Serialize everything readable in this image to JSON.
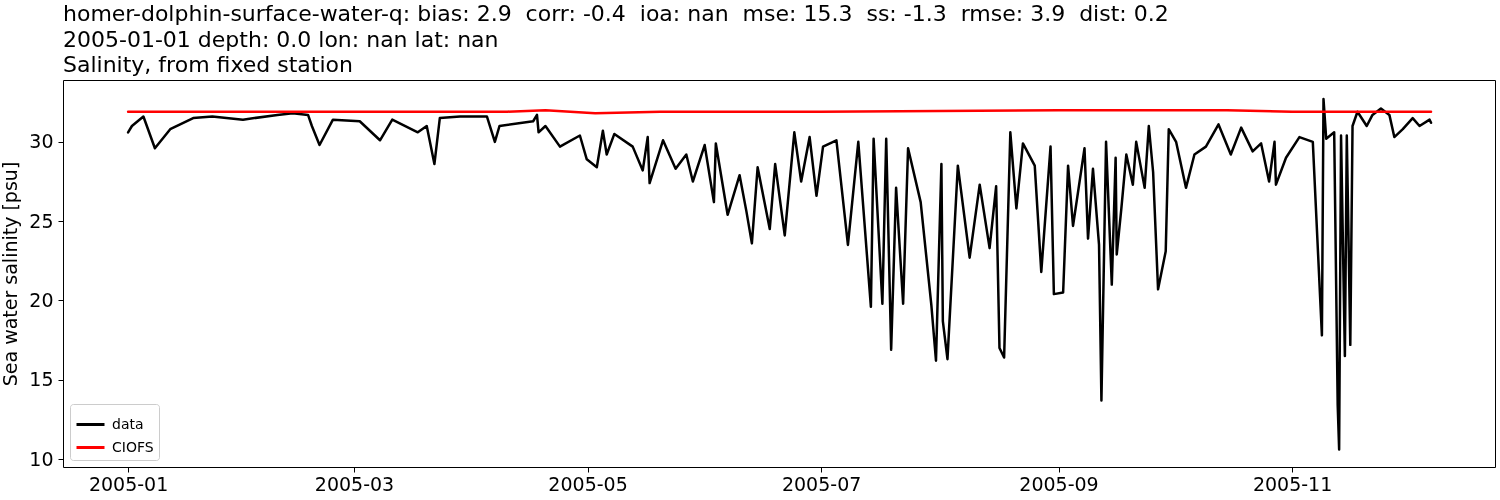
{
  "chart_data": {
    "type": "line",
    "title": "homer-dolphin-surface-water-q: bias: 2.9  corr: -0.4  ioa: nan  mse: 15.3  ss: -1.3  rmse: 3.9  dist: 0.2\n2005-01-01 depth: 0.0 lon: nan lat: nan\nSalinity, from fixed station",
    "ylabel": "Sea water salinity [psu]",
    "xlim": [
      "2004-12-15",
      "2005-12-24"
    ],
    "xticks": [
      "2005-01",
      "2005-03",
      "2005-05",
      "2005-07",
      "2005-09",
      "2005-11"
    ],
    "ylim": [
      9.5,
      33.9
    ],
    "yticks": [
      10,
      15,
      20,
      25,
      30
    ],
    "legend": "bottom left",
    "series": [
      {
        "name": "data",
        "color": "#000000",
        "x": [
          "2005-01-01T00:00",
          "2005-01-02",
          "2005-01-05",
          "2005-01-08",
          "2005-01-12",
          "2005-01-18",
          "2005-01-23",
          "2005-01-31",
          "2005-02-09",
          "2005-02-13",
          "2005-02-17",
          "2005-02-18",
          "2005-02-20",
          "2005-02-23T12:00",
          "2005-03-02T12:00",
          "2005-03-07T19:00",
          "2005-03-11",
          "2005-03-17T16:00",
          "2005-03-20",
          "2005-03-22",
          "2005-03-23T10:00",
          "2005-03-28T17:00",
          "2005-04-04T17:00",
          "2005-04-06T19:00",
          "2005-04-08",
          "2005-04-16T19:00",
          "2005-04-17T19:00",
          "2005-04-18T05:00",
          "2005-04-20",
          "2005-04-23T19:00",
          "2005-04-29",
          "2005-04-30T19:00",
          "2005-05-03T10:00",
          "2005-05-05",
          "2005-05-06",
          "2005-05-08",
          "2005-05-12T19:00",
          "2005-05-15T10:00",
          "2005-05-16T17:00",
          "2005-05-17T05:00",
          "2005-05-20T17:00",
          "2005-05-24",
          "2005-05-26T19:00",
          "2005-05-28T12:00",
          "2005-05-31T14:00",
          "2005-06-03",
          "2005-06-03T12:00",
          "2005-06-06T14:00",
          "2005-06-09T17:00",
          "2005-06-11T12:00",
          "2005-06-12T22:00",
          "2005-06-14T10:00",
          "2005-06-17T14:00",
          "2005-06-19",
          "2005-06-21T12:00",
          "2005-06-24",
          "2005-06-25T19:00",
          "2005-06-28",
          "2005-06-29T19:00",
          "2005-07-01T12:00",
          "2005-07-05",
          "2005-07-08",
          "2005-07-10T17:00",
          "2005-07-14",
          "2005-07-14T17:00",
          "2005-07-17",
          "2005-07-18",
          "2005-07-19T07:00",
          "2005-07-20T14:00",
          "2005-07-22T10:00",
          "2005-07-23T17:00",
          "2005-07-27",
          "2005-07-29T19:00",
          "2005-07-31",
          "2005-08-01T10:00",
          "2005-08-01T19:00",
          "2005-08-03",
          "2005-08-05T17:00",
          "2005-08-08T19:00",
          "2005-08-11T10:00",
          "2005-08-14",
          "2005-08-15T17:00",
          "2005-08-16T14:00",
          "2005-08-17T19:00",
          "2005-08-19T10:00",
          "2005-08-21",
          "2005-08-22T17:00",
          "2005-08-25T19:00",
          "2005-08-27T12:00",
          "2005-08-29T22:00",
          "2005-08-30T19:00",
          "2005-09-02T05:00",
          "2005-09-03T12:00",
          "2005-09-04T19:00",
          "2005-09-07T19:00",
          "2005-09-08T17:00",
          "2005-09-10",
          "2005-09-11T14:00",
          "2005-09-12T05:00",
          "2005-09-13T10:00",
          "2005-09-14T22:00",
          "2005-09-15T22:00",
          "2005-09-16T05:00",
          "2005-09-17T10:00",
          "2005-09-18T17:00",
          "2005-09-20T10:00",
          "2005-09-21T07:00",
          "2005-09-23T12:00",
          "2005-09-24T14:00",
          "2005-09-25T17:00",
          "2005-09-27",
          "2005-09-29",
          "2005-09-29T19:00",
          "2005-10-01T17:00",
          "2005-10-04T07:00",
          "2005-10-06T12:00",
          "2005-10-09T12:00",
          "2005-10-12T19:00",
          "2005-10-16",
          "2005-10-18T17:00",
          "2005-10-21T17:00",
          "2005-10-23T22:00",
          "2005-10-26",
          "2005-10-27T10:00",
          "2005-10-27T19:00",
          "2005-10-30T10:00",
          "2005-11-02T22:00",
          "2005-11-06T10:00",
          "2005-11-08T19:00",
          "2005-11-09T05:00",
          "2005-11-09T22:00",
          "2005-11-12",
          "2005-11-12T22:00",
          "2005-11-13T07:00",
          "2005-11-13T19:00",
          "2005-11-14T19:00",
          "2005-11-15T07:00",
          "2005-11-16T05:00",
          "2005-11-16T19:00",
          "2005-11-18T02:00",
          "2005-11-20T12:00",
          "2005-11-22",
          "2005-11-24T05:00",
          "2005-11-26T10:00",
          "2005-11-27T17:00",
          "2005-11-29T22:00",
          "2005-12-02T12:00",
          "2005-12-04T07:00",
          "2005-12-06T22:00",
          "2005-12-07T07:00"
        ],
        "values": [
          30.6,
          31.0,
          31.6,
          29.6,
          30.8,
          31.5,
          31.6,
          31.4,
          31.7,
          31.8,
          31.7,
          31.0,
          29.8,
          31.4,
          31.3,
          30.1,
          31.4,
          30.6,
          31.0,
          28.6,
          31.5,
          31.6,
          31.6,
          30.0,
          31.0,
          31.3,
          31.7,
          30.6,
          31.0,
          29.7,
          30.4,
          28.9,
          28.4,
          30.7,
          29.2,
          30.5,
          29.7,
          28.2,
          30.3,
          27.4,
          30.1,
          28.3,
          29.2,
          27.5,
          29.8,
          26.2,
          29.9,
          25.4,
          27.9,
          25.6,
          23.6,
          28.4,
          24.5,
          28.6,
          24.1,
          30.6,
          27.5,
          30.3,
          26.6,
          29.7,
          30.1,
          23.5,
          30.0,
          19.6,
          30.2,
          19.8,
          30.2,
          16.9,
          27.1,
          19.8,
          29.6,
          26.2,
          19.7,
          16.2,
          28.6,
          18.7,
          16.3,
          28.5,
          22.7,
          27.3,
          23.3,
          27.2,
          17.0,
          16.4,
          30.6,
          25.8,
          29.9,
          28.5,
          21.8,
          29.7,
          20.4,
          20.5,
          28.5,
          24.7,
          29.6,
          23.9,
          28.3,
          23.5,
          13.7,
          30.0,
          21.0,
          29.0,
          22.9,
          25.8,
          29.2,
          27.3,
          30.0,
          27.1,
          31.0,
          28.1,
          20.7,
          23.1,
          30.8,
          30.0,
          27.1,
          29.2,
          29.7,
          31.1,
          29.2,
          30.9,
          29.4,
          29.9,
          27.5,
          30.0,
          27.3,
          29.0,
          30.3,
          30.0,
          17.8,
          32.7,
          30.2,
          30.6,
          13.4,
          10.6,
          30.4,
          16.5,
          30.4,
          17.2,
          31.0,
          31.9,
          31.0,
          31.7,
          32.1,
          31.7,
          30.3,
          30.8,
          31.5,
          31.0,
          31.4,
          31.2
        ]
      },
      {
        "name": "CIOFS",
        "color": "#ff0000",
        "x": [
          "2005-01-01",
          "2005-02-15",
          "2005-04-10",
          "2005-04-20",
          "2005-05-03",
          "2005-05-20",
          "2005-07-01",
          "2005-09-01",
          "2005-10-15",
          "2005-11-01",
          "2005-12-07T07:00"
        ],
        "values": [
          31.9,
          31.9,
          31.9,
          32.0,
          31.8,
          31.9,
          31.9,
          32.0,
          32.0,
          31.9,
          31.9
        ]
      }
    ]
  }
}
